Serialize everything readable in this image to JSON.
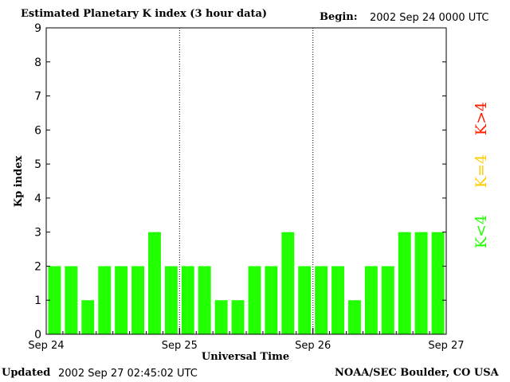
{
  "header": {
    "title": "Estimated Planetary K index (3 hour data)",
    "begin_label": "Begin:",
    "begin_value": "2002 Sep 24 0000 UTC"
  },
  "footer": {
    "updated_label": "Updated",
    "updated_value": "2002 Sep 27 02:45:02 UTC",
    "credit": "NOAA/SEC Boulder, CO USA"
  },
  "legend": {
    "high": "K>4",
    "equal": "K=4",
    "low": "K<4"
  },
  "colors": {
    "low": "#22ff00",
    "equal": "#ffcc00",
    "high": "#ff2200"
  },
  "chart_data": {
    "type": "bar",
    "title": "Estimated Planetary K index (3 hour data)",
    "xlabel": "Universal Time",
    "ylabel": "Kp index",
    "ylim": [
      0,
      9
    ],
    "yticks": [
      0,
      1,
      2,
      3,
      4,
      5,
      6,
      7,
      8,
      9
    ],
    "xtick_labels": [
      "Sep 24",
      "Sep 25",
      "Sep 26",
      "Sep 27"
    ],
    "day_separators": [
      "Sep 25",
      "Sep 26"
    ],
    "bins_per_day": 8,
    "values": [
      2,
      2,
      1,
      2,
      2,
      2,
      3,
      2,
      2,
      2,
      1,
      1,
      2,
      2,
      3,
      2,
      2,
      2,
      1,
      2,
      2,
      3,
      3,
      3
    ],
    "grid": false
  }
}
